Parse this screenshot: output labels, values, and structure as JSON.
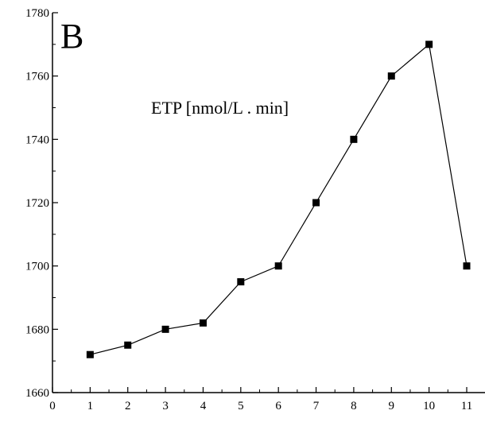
{
  "panel_label": "B",
  "chart_data": {
    "type": "line",
    "title": "",
    "annotation": "ETP [nmol/L . min]",
    "xlabel": "",
    "ylabel": "",
    "xlim": [
      0,
      11
    ],
    "ylim": [
      1660,
      1780
    ],
    "x_ticks": [
      0,
      1,
      2,
      3,
      4,
      5,
      6,
      7,
      8,
      9,
      10,
      11
    ],
    "y_ticks": [
      1660,
      1680,
      1700,
      1720,
      1740,
      1760,
      1780
    ],
    "grid": false,
    "legend": "none",
    "series": [
      {
        "x": [
          1,
          2,
          3,
          4,
          5,
          6,
          7,
          8,
          9,
          10,
          11
        ],
        "values": [
          1672,
          1675,
          1680,
          1682,
          1695,
          1700,
          1720,
          1740,
          1760,
          1770,
          1700
        ],
        "marker": "square",
        "color": "#000000"
      }
    ]
  }
}
